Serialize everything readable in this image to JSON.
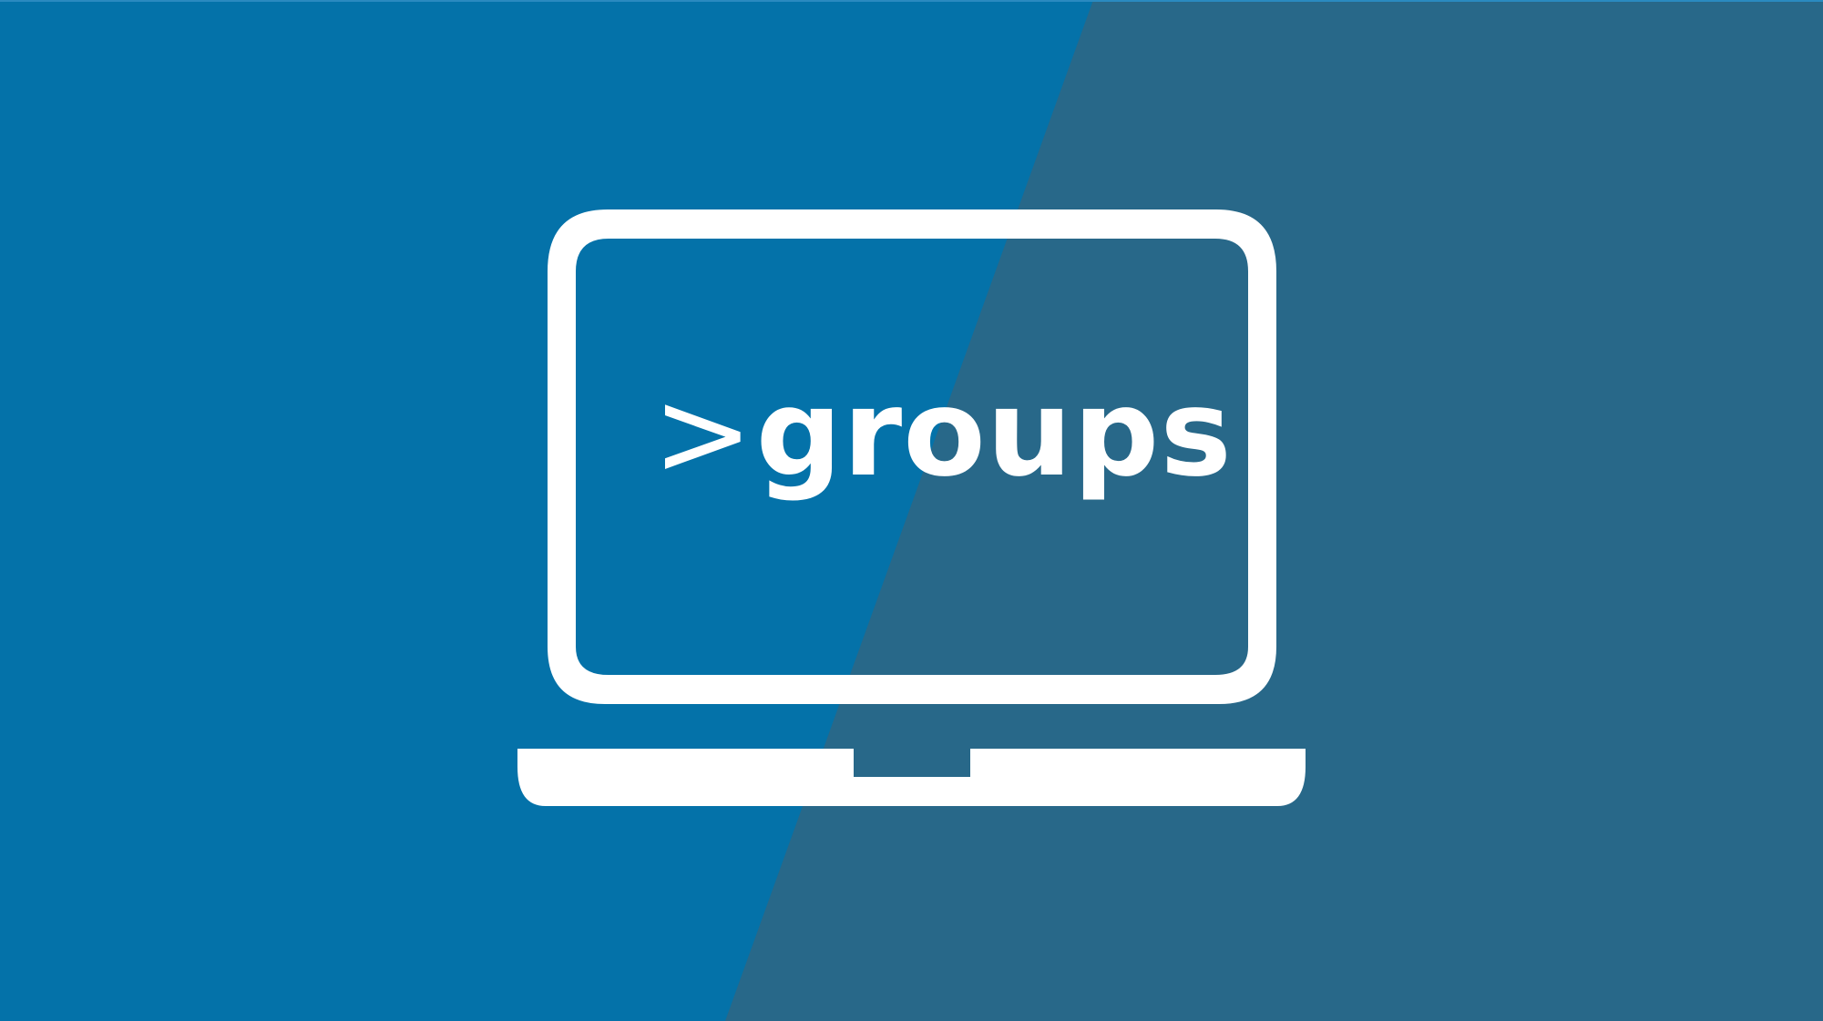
{
  "banner": {
    "caret": ">",
    "command": "groups"
  },
  "colors": {
    "left_panel": "#0472A9",
    "right_panel": "#286889",
    "icon": "#FFFFFF"
  },
  "icons": {
    "main": "laptop-icon"
  }
}
